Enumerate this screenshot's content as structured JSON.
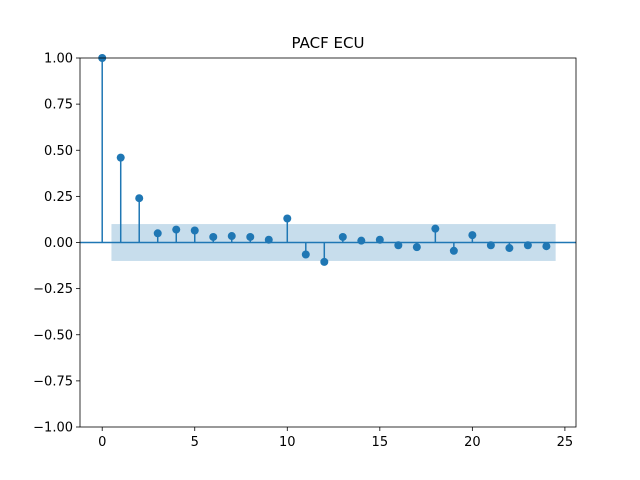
{
  "chart_data": {
    "type": "stem",
    "title": "PACF ECU",
    "xlabel": "",
    "ylabel": "",
    "xlim": [
      -1.2,
      25.6
    ],
    "ylim": [
      -1.0,
      1.0
    ],
    "x_ticks": [
      0,
      5,
      10,
      15,
      20,
      25
    ],
    "y_ticks": [
      -1.0,
      -0.75,
      -0.5,
      -0.25,
      0.0,
      0.25,
      0.5,
      0.75,
      1.0
    ],
    "y_tick_labels": [
      "−1.00",
      "−0.75",
      "−0.50",
      "−0.25",
      "0.00",
      "0.25",
      "0.50",
      "0.75",
      "1.00"
    ],
    "x_tick_labels": [
      "0",
      "5",
      "10",
      "15",
      "20",
      "25"
    ],
    "lags": [
      0,
      1,
      2,
      3,
      4,
      5,
      6,
      7,
      8,
      9,
      10,
      11,
      12,
      13,
      14,
      15,
      16,
      17,
      18,
      19,
      20,
      21,
      22,
      23,
      24
    ],
    "values": [
      1.0,
      0.46,
      0.24,
      0.05,
      0.07,
      0.065,
      0.03,
      0.035,
      0.03,
      0.015,
      0.13,
      -0.065,
      -0.105,
      0.03,
      0.01,
      0.015,
      -0.015,
      -0.025,
      0.075,
      -0.045,
      0.04,
      -0.015,
      -0.03,
      -0.015,
      -0.02
    ],
    "confidence_band": {
      "from_lag": 0.5,
      "to_lag": 24.5,
      "lower": -0.1,
      "upper": 0.1
    },
    "color": "#1f77b4",
    "band_color": "#1f77b4",
    "grid": false,
    "legend": "none"
  }
}
